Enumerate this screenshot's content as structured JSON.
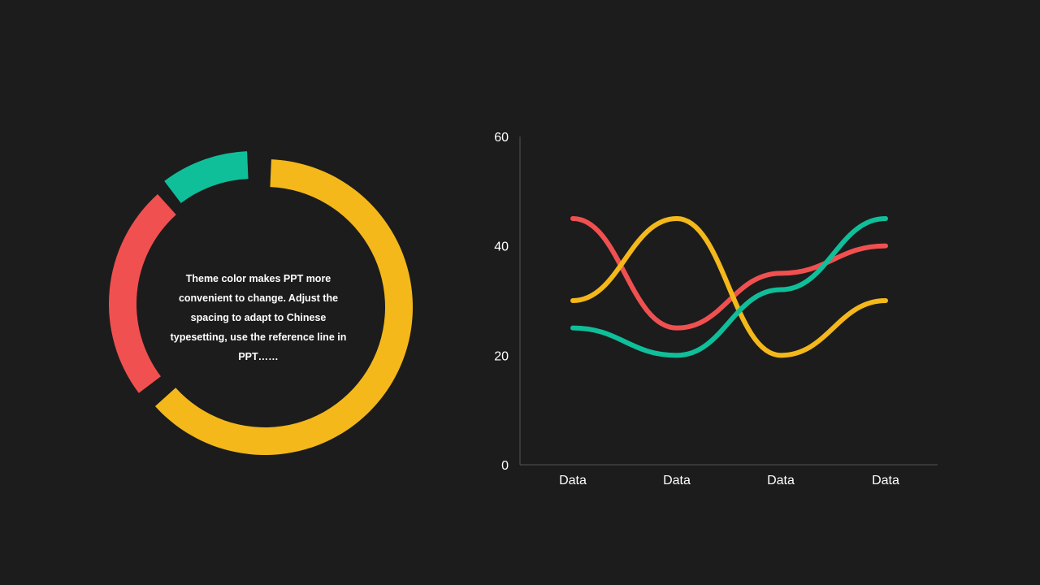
{
  "chart_data": [
    {
      "type": "pie",
      "style": "donut",
      "caption": "Theme color makes PPT more convenient to change. Adjust the spacing to adapt to Chinese typesetting, use the reference line in PPT……",
      "slices": [
        {
          "value": 64,
          "color": "#f4b81a"
        },
        {
          "value": 25,
          "color": "#f05050"
        },
        {
          "value": 11,
          "color": "#0fbf9a"
        }
      ]
    },
    {
      "type": "line",
      "smooth": true,
      "categories": [
        "Data",
        "Data",
        "Data",
        "Data"
      ],
      "ylim": [
        0,
        60
      ],
      "yticks": [
        0,
        20,
        40,
        60
      ],
      "grid": false,
      "series": [
        {
          "color": "#f05050",
          "values": [
            45,
            25,
            35,
            40
          ]
        },
        {
          "color": "#f4b81a",
          "values": [
            30,
            45,
            20,
            30
          ]
        },
        {
          "color": "#0fbf9a",
          "values": [
            25,
            20,
            32,
            45
          ]
        }
      ]
    }
  ]
}
